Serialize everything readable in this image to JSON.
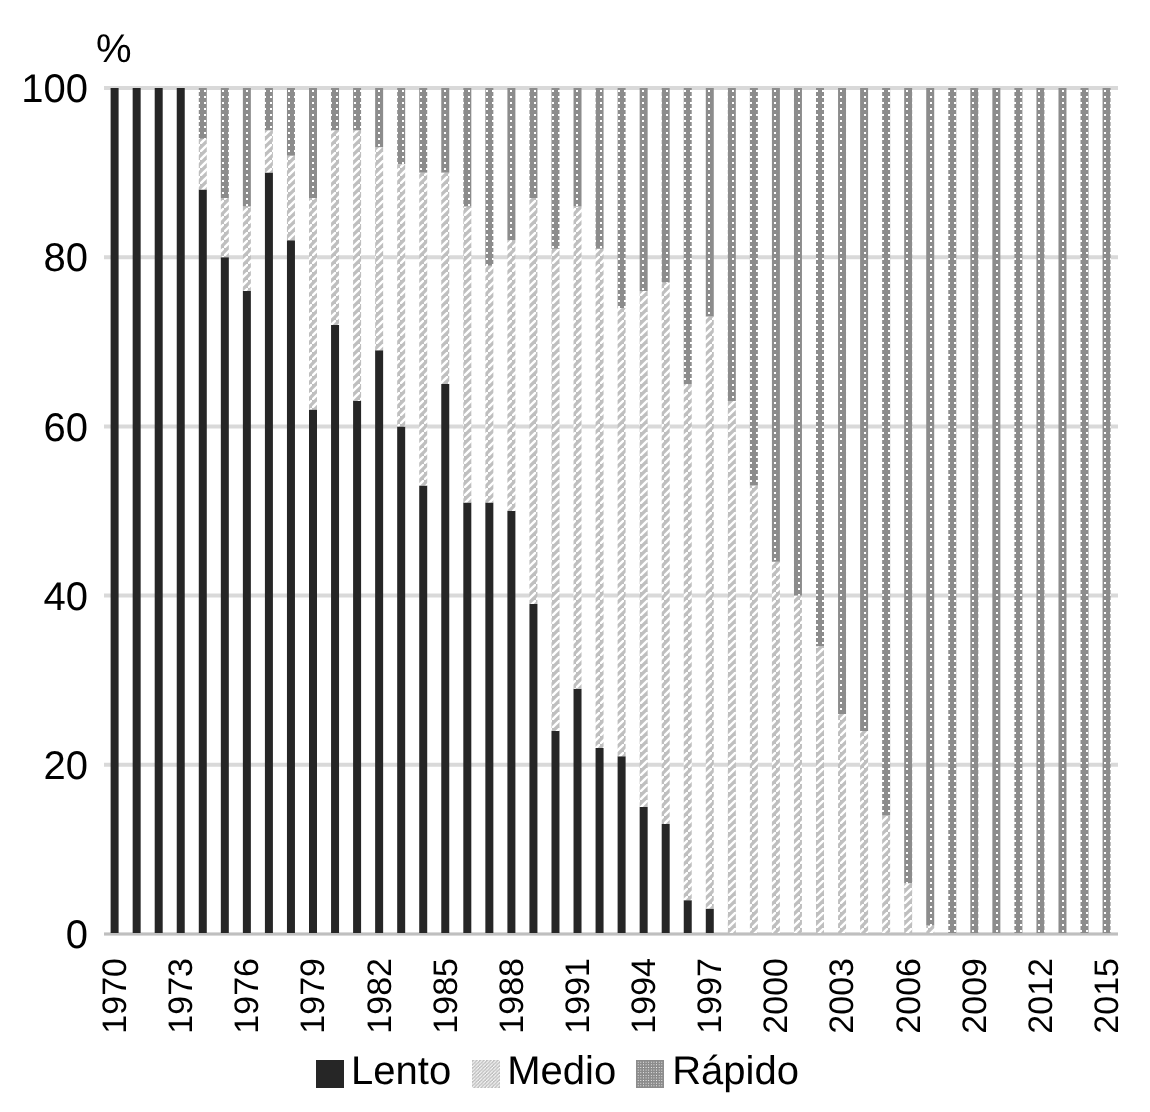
{
  "chart_data": {
    "type": "bar",
    "stacked": true,
    "ylabel": "%",
    "categories": [
      "1970",
      null,
      null,
      "1973",
      null,
      null,
      "1976",
      null,
      null,
      "1979",
      null,
      null,
      "1982",
      null,
      null,
      "1985",
      null,
      null,
      "1988",
      null,
      null,
      "1991",
      null,
      null,
      "1994",
      null,
      null,
      "1997",
      null,
      null,
      "2000",
      null,
      null,
      "2003",
      null,
      null,
      "2006",
      null,
      null,
      "2009",
      null,
      null,
      "2012",
      null,
      null,
      "2015"
    ],
    "series": [
      {
        "name": "Lento",
        "color": "#262626",
        "values": [
          100,
          100,
          100,
          100,
          88,
          80,
          76,
          90,
          82,
          62,
          72,
          63,
          69,
          60,
          53,
          65,
          51,
          51,
          50,
          39,
          24,
          29,
          22,
          21,
          15,
          13,
          4,
          3,
          0,
          0,
          0,
          0,
          0,
          0,
          0,
          0,
          0,
          0,
          0,
          0,
          0,
          0,
          0,
          0,
          0,
          0
        ]
      },
      {
        "name": "Medio",
        "color": "#bfbfbf",
        "values": [
          0,
          0,
          0,
          0,
          6,
          7,
          10,
          5,
          10,
          25,
          23,
          32,
          24,
          31,
          37,
          25,
          35,
          28,
          32,
          48,
          57,
          57,
          59,
          53,
          61,
          64,
          61,
          70,
          63,
          53,
          44,
          40,
          34,
          26,
          24,
          14,
          6,
          1,
          0,
          0,
          0,
          0,
          0,
          0,
          0,
          0
        ]
      },
      {
        "name": "Rápido",
        "color": "#8c8c8c",
        "values": [
          0,
          0,
          0,
          0,
          6,
          13,
          14,
          5,
          8,
          13,
          5,
          5,
          7,
          9,
          10,
          10,
          14,
          21,
          18,
          13,
          19,
          14,
          19,
          26,
          24,
          23,
          35,
          27,
          37,
          47,
          56,
          60,
          66,
          74,
          76,
          86,
          94,
          99,
          100,
          100,
          100,
          100,
          100,
          100,
          100,
          100
        ]
      }
    ],
    "ylim": [
      0,
      100
    ],
    "yticks": [
      0,
      20,
      40,
      60,
      80,
      100
    ],
    "grid": "y",
    "legend": "bottom"
  }
}
